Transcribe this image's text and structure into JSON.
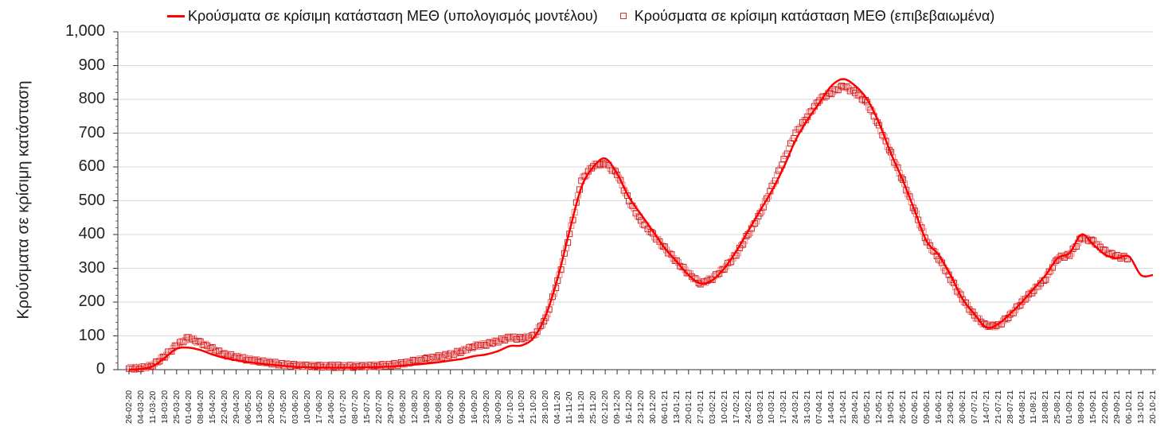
{
  "chart_data": {
    "type": "line",
    "title": "",
    "xlabel": "",
    "ylabel": "Κρούσματα σε κρίσιμη κατάσταση",
    "ylim": [
      0,
      1000
    ],
    "yticks": [
      "0",
      "100",
      "200",
      "300",
      "400",
      "500",
      "600",
      "700",
      "800",
      "900",
      "1,000"
    ],
    "grid": true,
    "legend_position": "top",
    "legend": [
      {
        "label": "Κρούσματα σε κρίσιμη κατάσταση ΜΕΘ (υπολογισμός μοντέλου)",
        "style": "line",
        "color": "#ff0000"
      },
      {
        "label": "Κρούσματα σε κρίσιμη κατάσταση ΜΕΘ (επιβεβαιωμένα)",
        "style": "square-marker",
        "color": "#e03030"
      }
    ],
    "x": [
      "26-02-20",
      "04-03-20",
      "11-03-20",
      "18-03-20",
      "25-03-20",
      "01-04-20",
      "08-04-20",
      "15-04-20",
      "22-04-20",
      "29-04-20",
      "06-05-20",
      "13-05-20",
      "20-05-20",
      "27-05-20",
      "03-06-20",
      "10-06-20",
      "17-06-20",
      "24-06-20",
      "01-07-20",
      "08-07-20",
      "15-07-20",
      "22-07-20",
      "29-07-20",
      "05-08-20",
      "12-08-20",
      "19-08-20",
      "26-08-20",
      "02-09-20",
      "09-09-20",
      "16-09-20",
      "23-09-20",
      "30-09-20",
      "07-10-20",
      "14-10-20",
      "21-10-20",
      "28-10-20",
      "04-11-20",
      "11-11-20",
      "18-11-20",
      "25-11-20",
      "02-12-20",
      "09-12-20",
      "16-12-20",
      "23-12-20",
      "30-12-20",
      "06-01-21",
      "13-01-21",
      "20-01-21",
      "27-01-21",
      "03-02-21",
      "10-02-21",
      "17-02-21",
      "24-02-21",
      "03-03-21",
      "10-03-21",
      "17-03-21",
      "24-03-21",
      "31-03-21",
      "07-04-21",
      "14-04-21",
      "21-04-21",
      "28-04-21",
      "05-05-21",
      "12-05-21",
      "19-05-21",
      "26-05-21",
      "02-06-21",
      "09-06-21",
      "16-06-21",
      "23-06-21",
      "30-06-21",
      "07-07-21",
      "14-07-21",
      "21-07-21",
      "28-07-21",
      "04-08-21",
      "11-08-21",
      "18-08-21",
      "25-08-21",
      "01-09-21",
      "08-09-21",
      "15-09-21",
      "22-09-21",
      "29-09-21",
      "06-10-21",
      "13-10-21",
      "20-10-21"
    ],
    "series": [
      {
        "name": "Κρούσματα σε κρίσιμη κατάσταση ΜΕΘ (υπολογισμός μοντέλου)",
        "values": [
          0,
          2,
          10,
          35,
          62,
          65,
          58,
          45,
          35,
          28,
          22,
          18,
          14,
          11,
          8,
          7,
          6,
          6,
          6,
          6,
          7,
          8,
          9,
          12,
          15,
          18,
          22,
          27,
          32,
          40,
          45,
          55,
          70,
          72,
          95,
          160,
          270,
          410,
          540,
          600,
          625,
          580,
          510,
          460,
          410,
          360,
          320,
          280,
          255,
          265,
          300,
          350,
          410,
          470,
          530,
          600,
          680,
          740,
          790,
          840,
          860,
          840,
          800,
          730,
          640,
          560,
          470,
          380,
          340,
          280,
          210,
          165,
          125,
          135,
          165,
          200,
          240,
          280,
          330,
          345,
          400,
          370,
          340,
          330,
          335,
          280,
          280
        ]
      },
      {
        "name": "Κρούσματα σε κρίσιμη κατάσταση ΜΕΘ (επιβεβαιωμένα)",
        "values": [
          3,
          5,
          12,
          40,
          72,
          95,
          80,
          62,
          45,
          38,
          30,
          25,
          20,
          15,
          12,
          11,
          10,
          10,
          10,
          10,
          11,
          12,
          14,
          18,
          26,
          32,
          38,
          45,
          55,
          70,
          75,
          85,
          95,
          92,
          100,
          150,
          260,
          400,
          560,
          605,
          610,
          580,
          500,
          440,
          400,
          360,
          320,
          285,
          255,
          270,
          300,
          340,
          400,
          460,
          540,
          620,
          700,
          750,
          800,
          820,
          840,
          820,
          790,
          720,
          640,
          560,
          470,
          380,
          330,
          270,
          210,
          160,
          130,
          130,
          160,
          200,
          235,
          270,
          330,
          340,
          390,
          380,
          350,
          335,
          330,
          null,
          null
        ]
      }
    ]
  }
}
